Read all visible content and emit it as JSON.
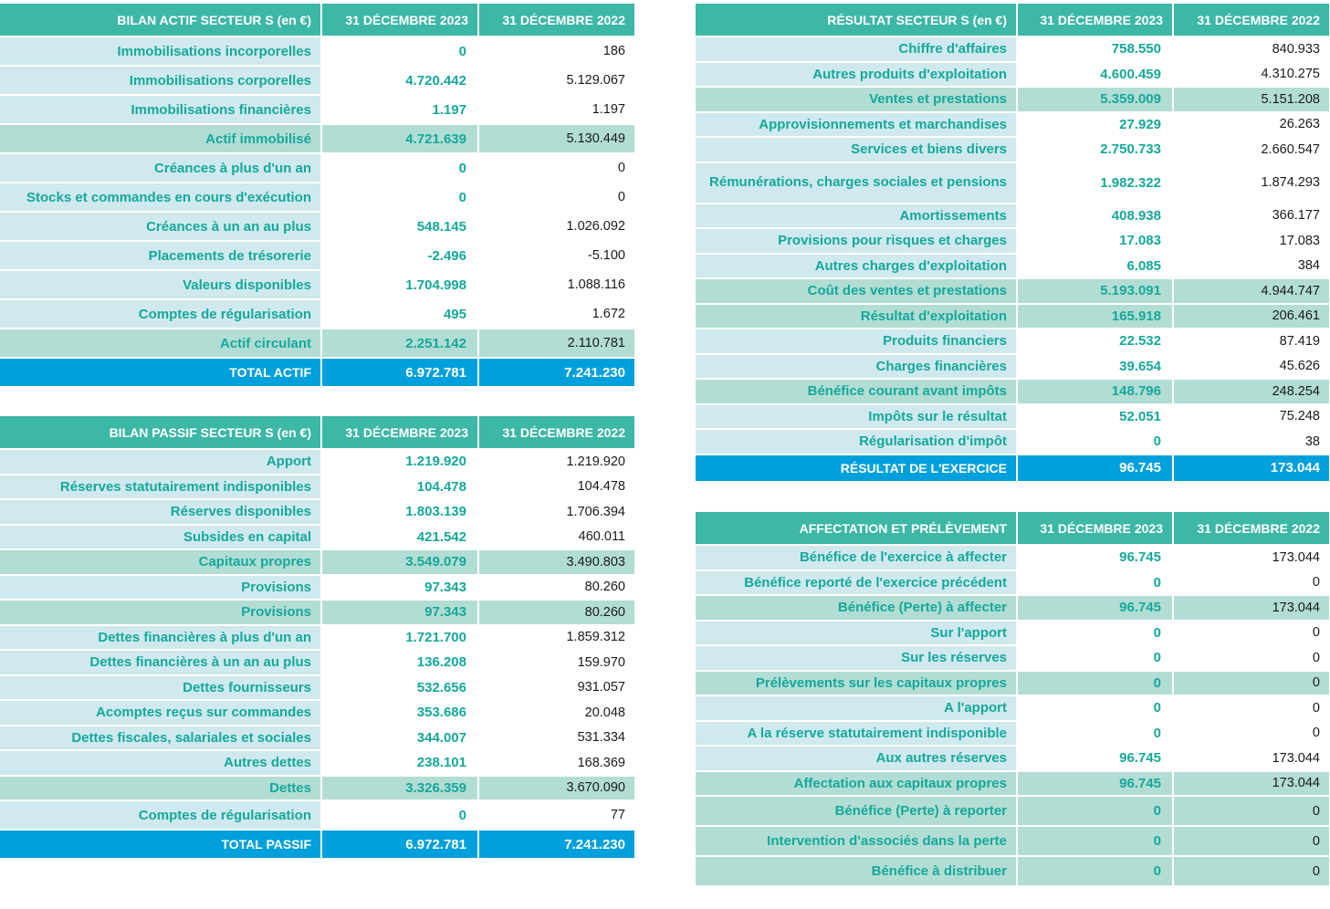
{
  "actif": {
    "headers": [
      "BILAN ACTIF  SECTEUR S (en €)",
      "31 DÉCEMBRE 2023",
      "31 DÉCEMBRE 2022"
    ],
    "rows": [
      {
        "label": "Immobilisations incorporelles",
        "v2023": "0",
        "v2022": "186",
        "type": "normal"
      },
      {
        "label": "Immobilisations corporelles",
        "v2023": "4.720.442",
        "v2022": "5.129.067",
        "type": "normal"
      },
      {
        "label": "Immobilisations financières",
        "v2023": "1.197",
        "v2022": "1.197",
        "type": "normal"
      },
      {
        "label": "Actif immobilisé",
        "v2023": "4.721.639",
        "v2022": "5.130.449",
        "type": "sub"
      },
      {
        "label": "Créances à plus d'un an",
        "v2023": "0",
        "v2022": "0",
        "type": "normal"
      },
      {
        "label": "Stocks et commandes en cours d'exécution",
        "v2023": "0",
        "v2022": "0",
        "type": "normal"
      },
      {
        "label": "Créances à un an au plus",
        "v2023": "548.145",
        "v2022": "1.026.092",
        "type": "normal"
      },
      {
        "label": "Placements de trésorerie",
        "v2023": "-2.496",
        "v2022": "-5.100",
        "type": "normal"
      },
      {
        "label": "Valeurs disponibles",
        "v2023": "1.704.998",
        "v2022": "1.088.116",
        "type": "normal"
      },
      {
        "label": "Comptes de régularisation",
        "v2023": "495",
        "v2022": "1.672",
        "type": "normal"
      },
      {
        "label": "Actif circulant",
        "v2023": "2.251.142",
        "v2022": "2.110.781",
        "type": "sub"
      },
      {
        "label": "TOTAL ACTIF",
        "v2023": "6.972.781",
        "v2022": "7.241.230",
        "type": "tot"
      }
    ]
  },
  "passif": {
    "headers": [
      "BILAN PASSIF  SECTEUR S (en €)",
      "31 DÉCEMBRE 2023",
      "31 DÉCEMBRE 2022"
    ],
    "rows": [
      {
        "label": "Apport",
        "v2023": "1.219.920",
        "v2022": "1.219.920",
        "type": "normal"
      },
      {
        "label": "Réserves statutairement indisponibles",
        "v2023": "104.478",
        "v2022": "104.478",
        "type": "normal"
      },
      {
        "label": "Réserves disponibles",
        "v2023": "1.803.139",
        "v2022": "1.706.394",
        "type": "normal"
      },
      {
        "label": "Subsides en capital",
        "v2023": "421.542",
        "v2022": "460.011",
        "type": "normal"
      },
      {
        "label": "Capitaux propres",
        "v2023": "3.549.079",
        "v2022": "3.490.803",
        "type": "sub"
      },
      {
        "label": "Provisions",
        "v2023": "97.343",
        "v2022": "80.260",
        "type": "normal"
      },
      {
        "label": "Provisions",
        "v2023": "97.343",
        "v2022": "80.260",
        "type": "sub"
      },
      {
        "label": "Dettes financières à plus d'un an",
        "v2023": "1.721.700",
        "v2022": "1.859.312",
        "type": "normal"
      },
      {
        "label": "Dettes financières à un an au plus",
        "v2023": "136.208",
        "v2022": "159.970",
        "type": "normal"
      },
      {
        "label": "Dettes fournisseurs",
        "v2023": "532.656",
        "v2022": "931.057",
        "type": "normal"
      },
      {
        "label": "Acomptes reçus sur commandes",
        "v2023": "353.686",
        "v2022": "20.048",
        "type": "normal"
      },
      {
        "label": "Dettes fiscales, salariales et sociales",
        "v2023": "344.007",
        "v2022": "531.334",
        "type": "normal"
      },
      {
        "label": "Autres dettes",
        "v2023": "238.101",
        "v2022": "168.369",
        "type": "normal"
      },
      {
        "label": "Dettes",
        "v2023": "3.326.359",
        "v2022": "3.670.090",
        "type": "sub"
      },
      {
        "label": "Comptes de régularisation",
        "v2023": "0",
        "v2022": "77",
        "type": "normal"
      },
      {
        "label": "TOTAL PASSIF",
        "v2023": "6.972.781",
        "v2022": "7.241.230",
        "type": "tot"
      }
    ]
  },
  "resultat": {
    "headers": [
      "RÉSULTAT SECTEUR S (en €)",
      "31 DÉCEMBRE 2023",
      "31 DÉCEMBRE 2022"
    ],
    "rows": [
      {
        "label": "Chiffre d'affaires",
        "v2023": "758.550",
        "v2022": "840.933",
        "type": "normal"
      },
      {
        "label": "Autres produits d'exploitation",
        "v2023": "4.600.459",
        "v2022": "4.310.275",
        "type": "normal"
      },
      {
        "label": "Ventes et prestations",
        "v2023": "5.359.009",
        "v2022": "5.151.208",
        "type": "sub"
      },
      {
        "label": "Approvisionnements et marchandises",
        "v2023": "27.929",
        "v2022": "26.263",
        "type": "normal"
      },
      {
        "label": "Services et biens divers",
        "v2023": "2.750.733",
        "v2022": "2.660.547",
        "type": "normal"
      },
      {
        "label": "Rémunérations, charges sociales et pensions",
        "v2023": "1.982.322",
        "v2022": "1.874.293",
        "type": "normal"
      },
      {
        "label": "Amortissements",
        "v2023": "408.938",
        "v2022": "366.177",
        "type": "normal"
      },
      {
        "label": "Provisions pour risques et charges",
        "v2023": "17.083",
        "v2022": "17.083",
        "type": "normal"
      },
      {
        "label": "Autres charges d'exploitation",
        "v2023": "6.085",
        "v2022": "384",
        "type": "normal"
      },
      {
        "label": "Coût des ventes et prestations",
        "v2023": "5.193.091",
        "v2022": "4.944.747",
        "type": "sub"
      },
      {
        "label": "Résultat d'exploitation",
        "v2023": "165.918",
        "v2022": "206.461",
        "type": "sub"
      },
      {
        "label": "Produits financiers",
        "v2023": "22.532",
        "v2022": "87.419",
        "type": "normal"
      },
      {
        "label": "Charges financières",
        "v2023": "39.654",
        "v2022": "45.626",
        "type": "normal"
      },
      {
        "label": "Bénéfice courant avant impôts",
        "v2023": "148.796",
        "v2022": "248.254",
        "type": "sub"
      },
      {
        "label": "Impôts sur le résultat",
        "v2023": "52.051",
        "v2022": "75.248",
        "type": "normal"
      },
      {
        "label": "Régularisation d'impôt",
        "v2023": "0",
        "v2022": "38",
        "type": "normal"
      },
      {
        "label": "RÉSULTAT DE L'EXERCICE",
        "v2023": "96.745",
        "v2022": "173.044",
        "type": "tot"
      }
    ]
  },
  "affectation": {
    "headers": [
      "AFFECTATION ET PRÉLÈVEMENT",
      "31 DÉCEMBRE 2023",
      "31 DÉCEMBRE 2022"
    ],
    "rows": [
      {
        "label": "Bénéfice de l'exercice à affecter",
        "v2023": "96.745",
        "v2022": "173.044",
        "type": "normal"
      },
      {
        "label": "Bénéfice reporté de l'exercice précédent",
        "v2023": "0",
        "v2022": "0",
        "type": "normal"
      },
      {
        "label": "Bénéfice (Perte) à affecter",
        "v2023": "96.745",
        "v2022": "173.044",
        "type": "sub"
      },
      {
        "label": "Sur l'apport",
        "v2023": "0",
        "v2022": "0",
        "type": "normal"
      },
      {
        "label": "Sur les réserves",
        "v2023": "0",
        "v2022": "0",
        "type": "normal"
      },
      {
        "label": "Prélèvements sur les capitaux propres",
        "v2023": "0",
        "v2022": "0",
        "type": "sub"
      },
      {
        "label": "A l'apport",
        "v2023": "0",
        "v2022": "0",
        "type": "normal"
      },
      {
        "label": "A la réserve statutairement indisponible",
        "v2023": "0",
        "v2022": "0",
        "type": "normal"
      },
      {
        "label": "Aux autres réserves",
        "v2023": "96.745",
        "v2022": "173.044",
        "type": "normal"
      },
      {
        "label": "Affectation aux capitaux propres",
        "v2023": "96.745",
        "v2022": "173.044",
        "type": "sub"
      },
      {
        "label": "Bénéfice (Perte) à reporter",
        "v2023": "0",
        "v2022": "0",
        "type": "sub"
      },
      {
        "label": "Intervention d'associés dans la perte",
        "v2023": "0",
        "v2022": "0",
        "type": "sub"
      },
      {
        "label": "Bénéfice à distribuer",
        "v2023": "0",
        "v2022": "0",
        "type": "sub"
      }
    ]
  }
}
